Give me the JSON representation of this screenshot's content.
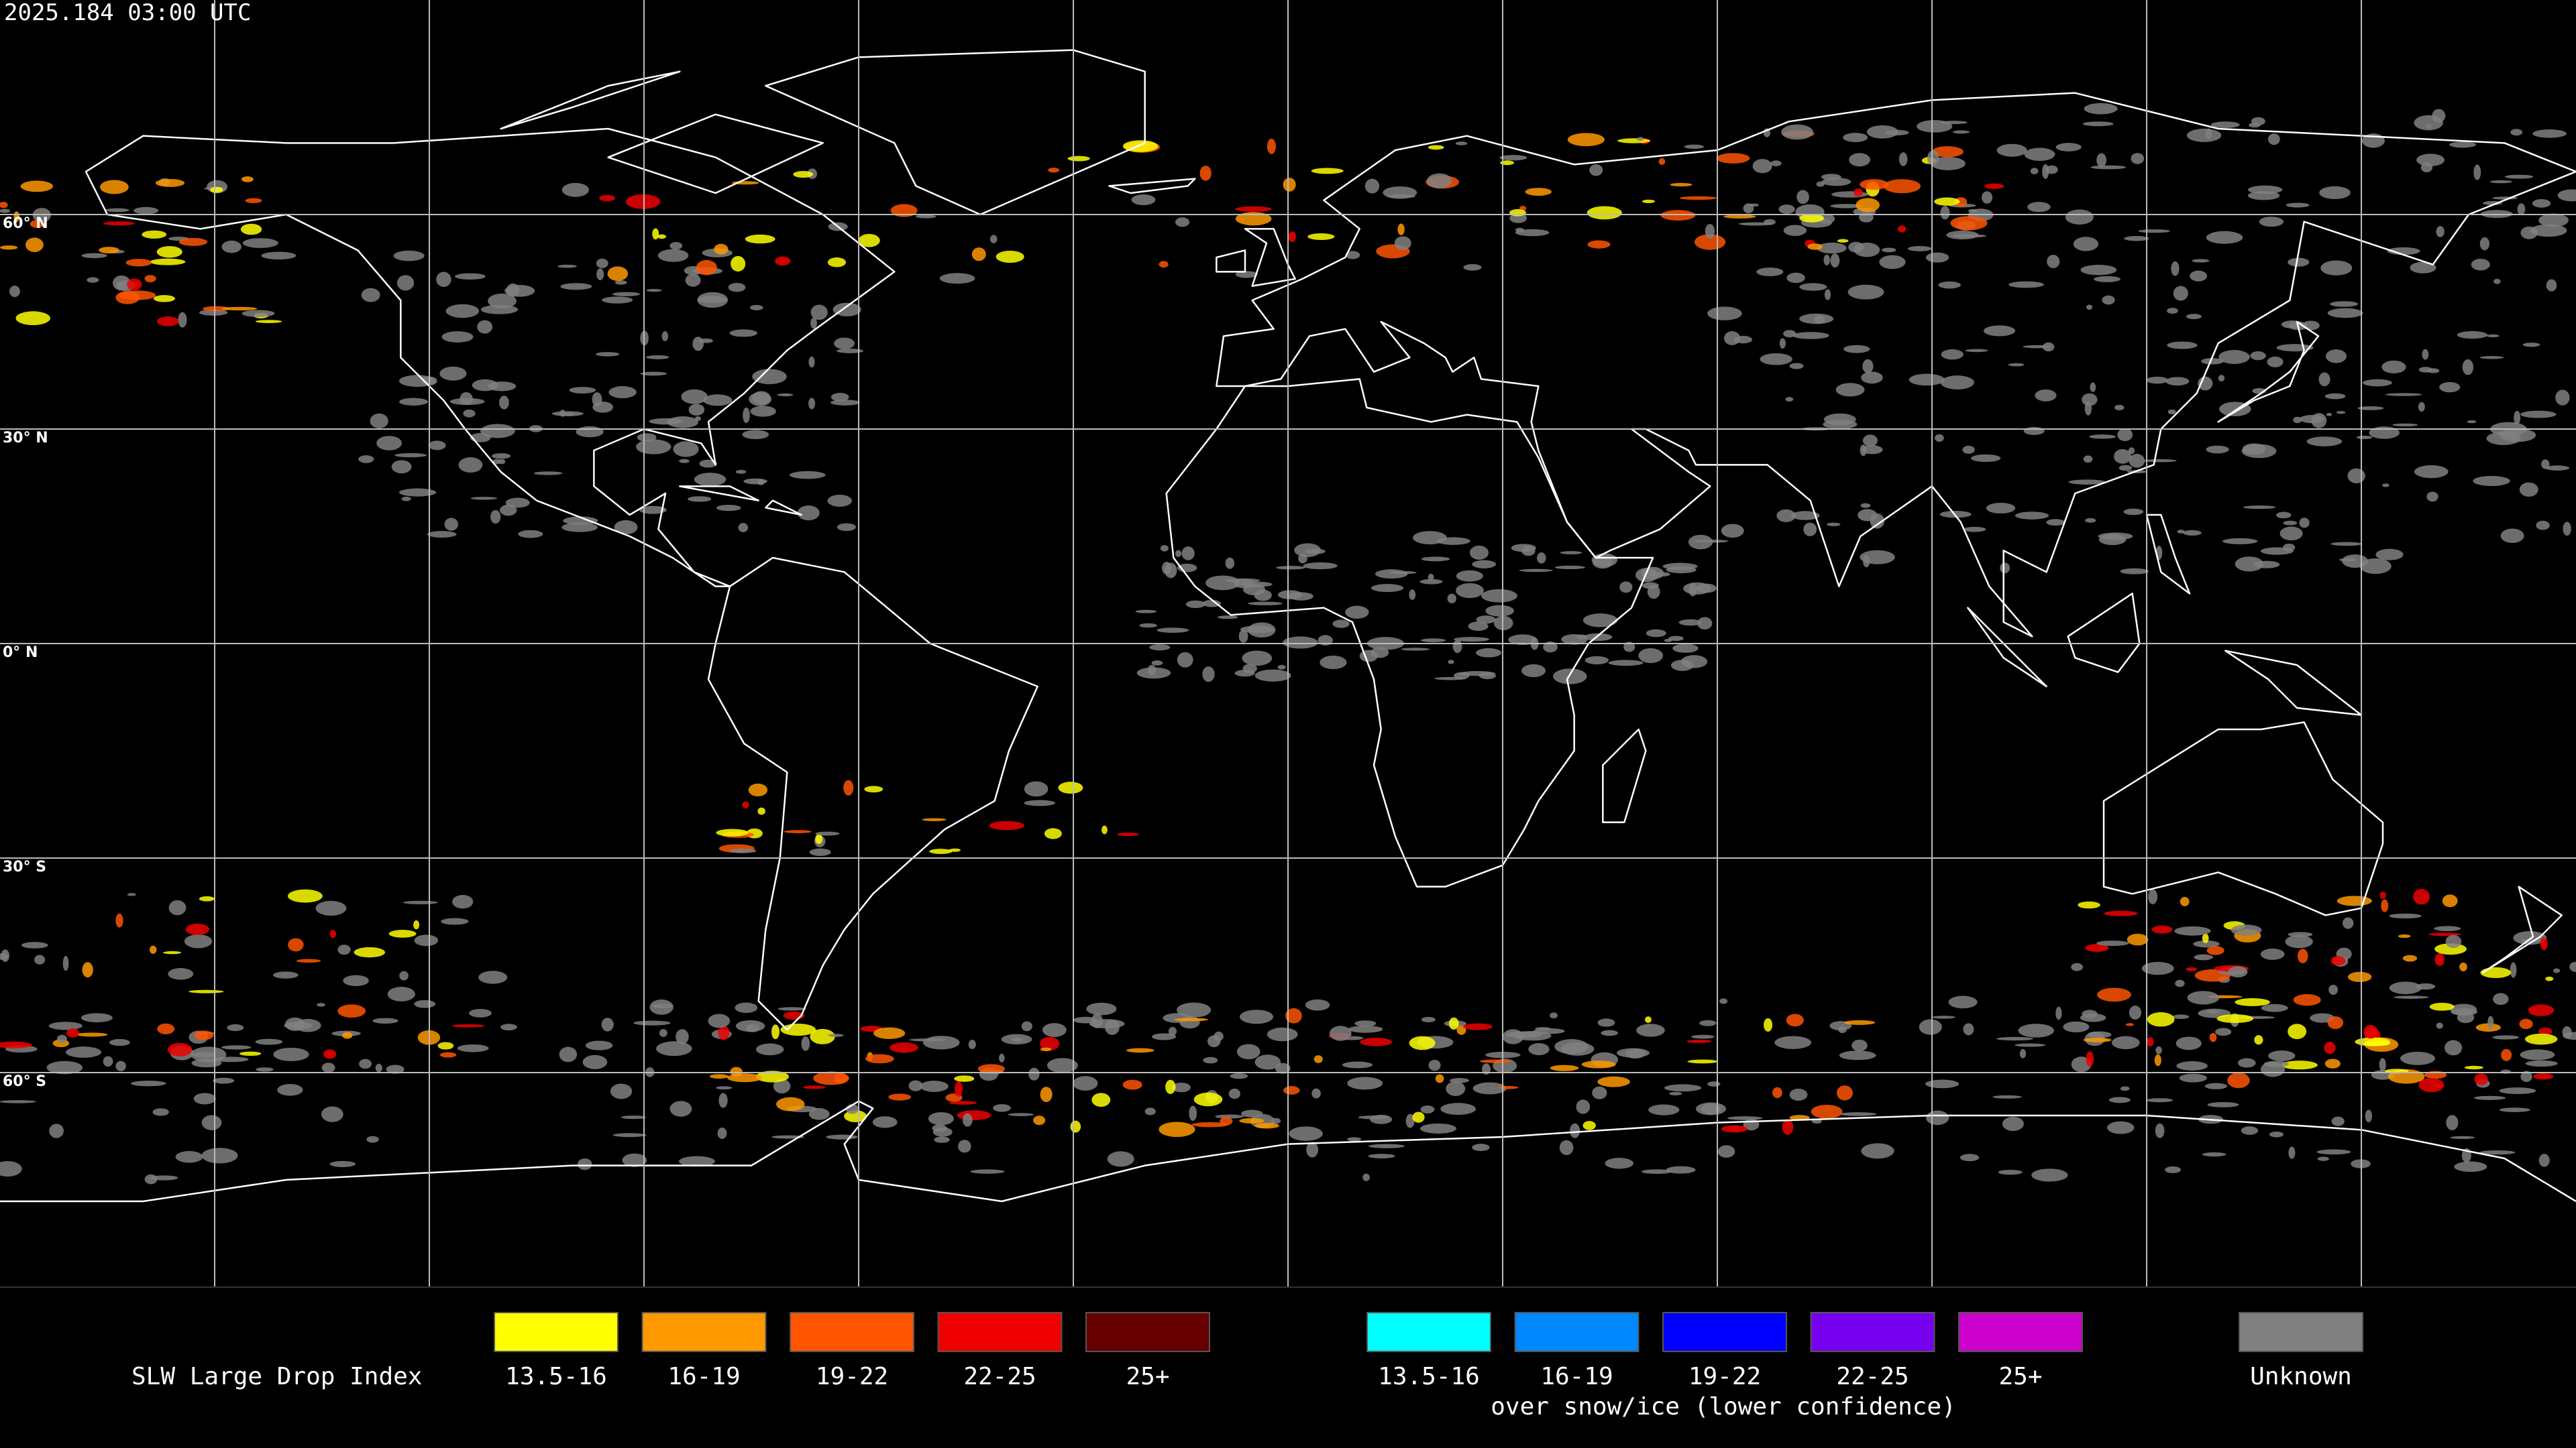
{
  "header": {
    "timestamp": "2025.184  03:00 UTC"
  },
  "map": {
    "latitude_labels": [
      "60° N",
      "30° N",
      "0° N",
      "30° S",
      "60° S"
    ]
  },
  "legend": {
    "title": "SLW Large Drop Index",
    "groups": [
      {
        "items": [
          {
            "label": "13.5-16",
            "color": "#ffff00"
          },
          {
            "label": "16-19",
            "color": "#ff9900"
          },
          {
            "label": "19-22",
            "color": "#ff5500"
          },
          {
            "label": "22-25",
            "color": "#ee0000"
          },
          {
            "label": "25+",
            "color": "#660000"
          }
        ]
      },
      {
        "items": [
          {
            "label": "13.5-16",
            "color": "#00ffff"
          },
          {
            "label": "16-19",
            "color": "#0088ff"
          },
          {
            "label": "19-22",
            "color": "#0000ff"
          },
          {
            "label": "22-25",
            "color": "#7700ee"
          },
          {
            "label": "25+",
            "color": "#cc00cc"
          }
        ],
        "caption": "over snow/ice (lower confidence)"
      },
      {
        "items": [
          {
            "label": "Unknown",
            "color": "#808080"
          }
        ]
      }
    ]
  }
}
